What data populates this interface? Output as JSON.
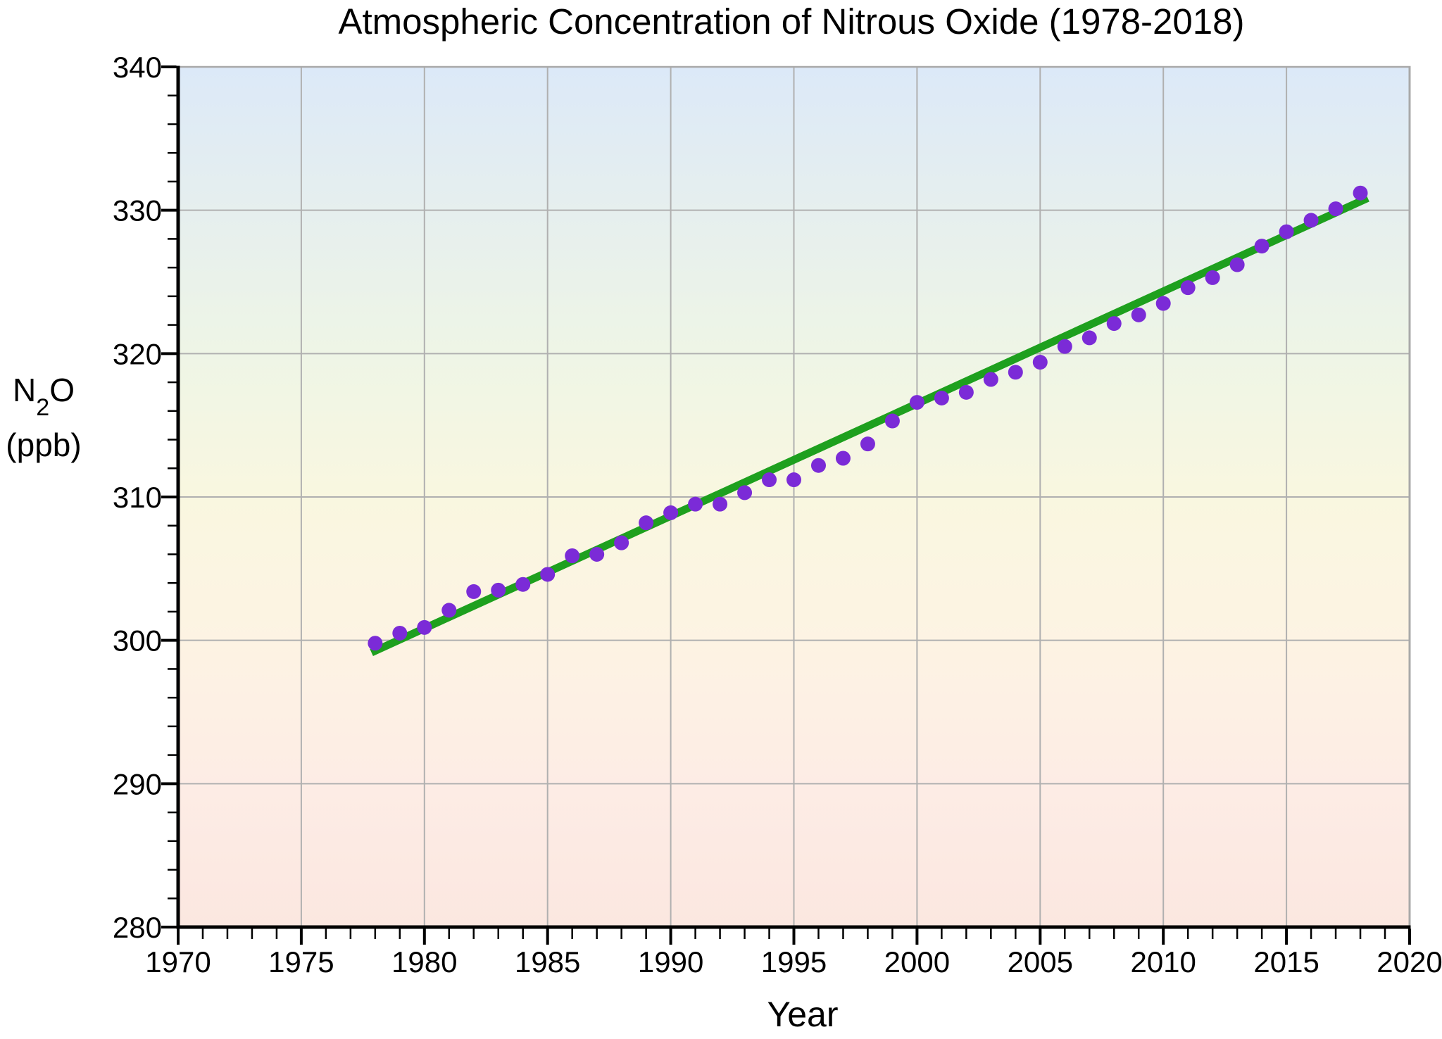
{
  "page": {
    "background": "#ffffff"
  },
  "chart_data": {
    "type": "scatter",
    "title": "Atmospheric Concentration of Nitrous Oxide (1978-2018)",
    "xlabel": "Year",
    "ylabel": {
      "pre": "N",
      "sub": "2",
      "post": "O"
    },
    "ylabel_unit": "(ppb)",
    "xlim": [
      1970,
      2020
    ],
    "ylim": [
      280,
      340
    ],
    "x_ticks": [
      1970,
      1975,
      1980,
      1985,
      1990,
      1995,
      2000,
      2005,
      2010,
      2015,
      2020
    ],
    "y_ticks": [
      280,
      290,
      300,
      310,
      320,
      330,
      340
    ],
    "x_minor_step": 1,
    "y_minor_step": 2,
    "grid": true,
    "legend_position": "none",
    "series": [
      {
        "name": "annual-n2o-concentration",
        "type": "scatter",
        "color": "#7b2bd7",
        "marker_radius": 10.5,
        "points": [
          [
            1978,
            299.8
          ],
          [
            1979,
            300.5
          ],
          [
            1980,
            300.9
          ],
          [
            1981,
            302.1
          ],
          [
            1982,
            303.4
          ],
          [
            1983,
            303.5
          ],
          [
            1984,
            303.9
          ],
          [
            1985,
            304.6
          ],
          [
            1986,
            305.9
          ],
          [
            1987,
            306.0
          ],
          [
            1988,
            306.8
          ],
          [
            1989,
            308.2
          ],
          [
            1990,
            308.9
          ],
          [
            1991,
            309.5
          ],
          [
            1992,
            309.5
          ],
          [
            1993,
            310.3
          ],
          [
            1994,
            311.2
          ],
          [
            1995,
            311.2
          ],
          [
            1996,
            312.2
          ],
          [
            1997,
            312.7
          ],
          [
            1998,
            313.7
          ],
          [
            1999,
            315.3
          ],
          [
            2000,
            316.6
          ],
          [
            2001,
            316.9
          ],
          [
            2002,
            317.3
          ],
          [
            2003,
            318.2
          ],
          [
            2004,
            318.7
          ],
          [
            2005,
            319.4
          ],
          [
            2006,
            320.5
          ],
          [
            2007,
            321.1
          ],
          [
            2008,
            322.1
          ],
          [
            2009,
            322.7
          ],
          [
            2010,
            323.5
          ],
          [
            2011,
            324.6
          ],
          [
            2012,
            325.3
          ],
          [
            2013,
            326.2
          ],
          [
            2014,
            327.5
          ],
          [
            2015,
            328.5
          ],
          [
            2016,
            329.3
          ],
          [
            2017,
            330.1
          ],
          [
            2018,
            331.2
          ]
        ]
      },
      {
        "name": "linear-trend",
        "type": "line",
        "color": "#1ea01e",
        "stroke_width": 11,
        "points": [
          [
            1977.85,
            299.15
          ],
          [
            2018.3,
            330.85
          ]
        ]
      }
    ],
    "background_gradient": [
      {
        "offset": 0.0,
        "color": "#dce9f8"
      },
      {
        "offset": 0.17,
        "color": "#e6efee"
      },
      {
        "offset": 0.33,
        "color": "#eef5e6"
      },
      {
        "offset": 0.5,
        "color": "#f9f7e0"
      },
      {
        "offset": 0.67,
        "color": "#fdf3e3"
      },
      {
        "offset": 0.84,
        "color": "#fdece5"
      },
      {
        "offset": 1.0,
        "color": "#fbe7e0"
      }
    ],
    "colors": {
      "grid": "#b0b0b0",
      "axis": "#000000",
      "frame": "#a9a9a9",
      "text": "#000000"
    }
  }
}
